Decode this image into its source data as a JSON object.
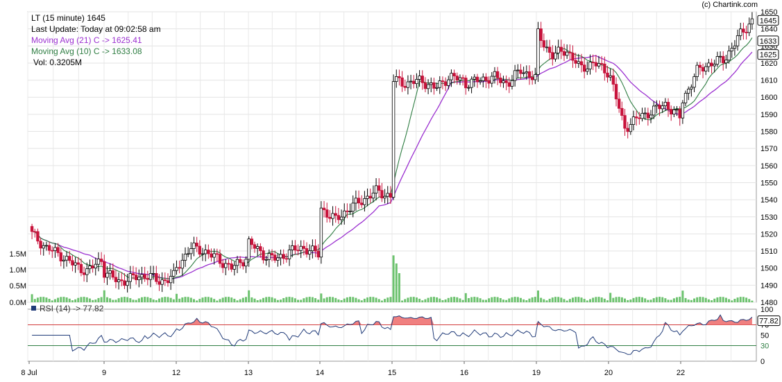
{
  "copyright": "(c) Chartink.com",
  "header": {
    "title": "LT (15 minute) 1645",
    "last_update": "Last Update: Today at 09:02:58 am",
    "ma21": "Moving Avg (21) C -> 1625.41",
    "ma10": "Moving Avg (10) C -> 1633.08",
    "vol": "Vol: 0.3205M"
  },
  "rsi_label": "RSI (14) -> 77.82",
  "colors": {
    "up": "#ffffff",
    "down": "#c8143c",
    "ma21": "#9b30d0",
    "ma10": "#2e7d42",
    "rsi": "#1f3a78",
    "vol": "#6cc26e",
    "rsi_fill": "#f08080"
  },
  "chart_data": {
    "type": "candlestick",
    "x_tick_labels": [
      "8 Jul",
      "9",
      "12",
      "13",
      "14",
      "15",
      "16",
      "19",
      "20",
      "22"
    ],
    "price_axis": {
      "min": 1480,
      "max": 1650,
      "ticks": [
        1480,
        1490,
        1500,
        1510,
        1520,
        1530,
        1540,
        1550,
        1560,
        1570,
        1580,
        1590,
        1600,
        1610,
        1620,
        1630,
        1640,
        1650
      ]
    },
    "price_labels": [
      "1645",
      "1633",
      "1625"
    ],
    "volume_axis": {
      "ticks": [
        "0.0M",
        "0.5M",
        "1.0M",
        "1.5M"
      ]
    },
    "rsi_axis": {
      "ticks": [
        "0",
        "30",
        "50",
        "70",
        "100"
      ],
      "last": "77.82"
    },
    "day_closes": [
      [
        1520,
        1512,
        1508,
        1502,
        1498,
        1505
      ],
      [
        1498,
        1492,
        1494,
        1496,
        1492,
        1495
      ],
      [
        1500,
        1512,
        1510,
        1505,
        1500,
        1506
      ],
      [
        1515,
        1508,
        1505,
        1510,
        1512,
        1508
      ],
      [
        1535,
        1528,
        1535,
        1540,
        1545,
        1542
      ],
      [
        1610,
        1608,
        1610,
        1605,
        1612,
        1610
      ],
      [
        1608,
        1610,
        1612,
        1608,
        1616,
        1611
      ],
      [
        1637,
        1624,
        1628,
        1617,
        1620,
        1615
      ],
      [
        1612,
        1582,
        1588,
        1592,
        1596,
        1588
      ],
      [
        1598,
        1615,
        1620,
        1622,
        1635,
        1645
      ]
    ]
  }
}
